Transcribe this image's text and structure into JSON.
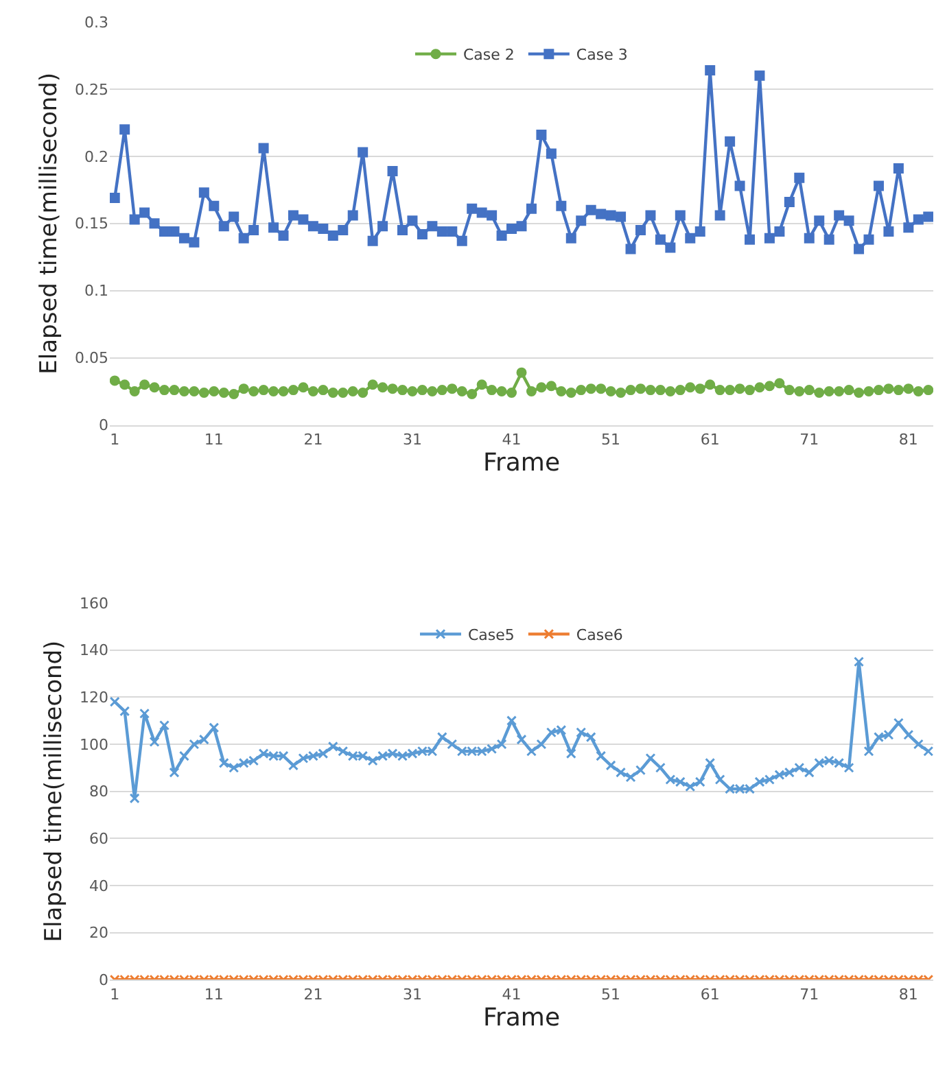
{
  "chart_data": [
    {
      "type": "line",
      "xlabel": "Frame",
      "ylabel": "Elapsed time(millisecond)",
      "x": [
        1,
        2,
        3,
        4,
        5,
        6,
        7,
        8,
        9,
        10,
        11,
        12,
        13,
        14,
        15,
        16,
        17,
        18,
        19,
        20,
        21,
        22,
        23,
        24,
        25,
        26,
        27,
        28,
        29,
        30,
        31,
        32,
        33,
        34,
        35,
        36,
        37,
        38,
        39,
        40,
        41,
        42,
        43,
        44,
        45,
        46,
        47,
        48,
        49,
        50,
        51,
        52,
        53,
        54,
        55,
        56,
        57,
        58,
        59,
        60,
        61,
        62,
        63,
        64,
        65,
        66,
        67,
        68,
        69,
        70,
        71,
        72,
        73,
        74,
        75,
        76,
        77,
        78,
        79,
        80,
        81,
        82,
        83
      ],
      "xlim": [
        0.5,
        83.5
      ],
      "xticks": [
        1,
        11,
        21,
        31,
        41,
        51,
        61,
        71,
        81
      ],
      "ylim": [
        0,
        0.3
      ],
      "yticks": [
        0,
        0.05,
        0.1,
        0.15,
        0.2,
        0.25,
        0.3
      ],
      "grid": "y",
      "legend": "top",
      "series": [
        {
          "name": "Case 2",
          "color": "#70ad47",
          "marker": "circle",
          "values": [
            0.033,
            0.03,
            0.025,
            0.03,
            0.028,
            0.026,
            0.026,
            0.025,
            0.025,
            0.024,
            0.025,
            0.024,
            0.023,
            0.027,
            0.025,
            0.026,
            0.025,
            0.025,
            0.026,
            0.028,
            0.025,
            0.026,
            0.024,
            0.024,
            0.025,
            0.024,
            0.03,
            0.028,
            0.027,
            0.026,
            0.025,
            0.026,
            0.025,
            0.026,
            0.027,
            0.025,
            0.023,
            0.03,
            0.026,
            0.025,
            0.024,
            0.039,
            0.025,
            0.028,
            0.029,
            0.025,
            0.024,
            0.026,
            0.027,
            0.027,
            0.025,
            0.024,
            0.026,
            0.027,
            0.026,
            0.026,
            0.025,
            0.026,
            0.028,
            0.027,
            0.03,
            0.026,
            0.026,
            0.027,
            0.026,
            0.028,
            0.029,
            0.031,
            0.026,
            0.025,
            0.026,
            0.024,
            0.025,
            0.025,
            0.026,
            0.024,
            0.025,
            0.026,
            0.027,
            0.026,
            0.027,
            0.025,
            0.026
          ]
        },
        {
          "name": "Case 3",
          "color": "#4472c4",
          "marker": "square",
          "values": [
            0.169,
            0.22,
            0.153,
            0.158,
            0.15,
            0.144,
            0.144,
            0.139,
            0.136,
            0.173,
            0.163,
            0.148,
            0.155,
            0.139,
            0.145,
            0.206,
            0.147,
            0.141,
            0.156,
            0.153,
            0.148,
            0.146,
            0.141,
            0.145,
            0.156,
            0.203,
            0.137,
            0.148,
            0.189,
            0.145,
            0.152,
            0.142,
            0.148,
            0.144,
            0.144,
            0.137,
            0.161,
            0.158,
            0.156,
            0.141,
            0.146,
            0.148,
            0.161,
            0.216,
            0.202,
            0.163,
            0.139,
            0.152,
            0.16,
            0.157,
            0.156,
            0.155,
            0.131,
            0.145,
            0.156,
            0.138,
            0.132,
            0.156,
            0.139,
            0.144,
            0.264,
            0.156,
            0.211,
            0.178,
            0.138,
            0.26,
            0.139,
            0.144,
            0.166,
            0.184,
            0.139,
            0.152,
            0.138,
            0.156,
            0.152,
            0.131,
            0.138,
            0.178,
            0.144,
            0.191,
            0.147,
            0.153,
            0.155
          ]
        }
      ]
    },
    {
      "type": "line",
      "xlabel": "Frame",
      "ylabel": "Elapsed time(millisecond)",
      "x": [
        1,
        2,
        3,
        4,
        5,
        6,
        7,
        8,
        9,
        10,
        11,
        12,
        13,
        14,
        15,
        16,
        17,
        18,
        19,
        20,
        21,
        22,
        23,
        24,
        25,
        26,
        27,
        28,
        29,
        30,
        31,
        32,
        33,
        34,
        35,
        36,
        37,
        38,
        39,
        40,
        41,
        42,
        43,
        44,
        45,
        46,
        47,
        48,
        49,
        50,
        51,
        52,
        53,
        54,
        55,
        56,
        57,
        58,
        59,
        60,
        61,
        62,
        63,
        64,
        65,
        66,
        67,
        68,
        69,
        70,
        71,
        72,
        73,
        74,
        75,
        76,
        77,
        78,
        79,
        80,
        81,
        82,
        83
      ],
      "xlim": [
        0.5,
        83.5
      ],
      "xticks": [
        1,
        11,
        21,
        31,
        41,
        51,
        61,
        71,
        81
      ],
      "ylim": [
        0,
        160
      ],
      "yticks": [
        0,
        20,
        40,
        60,
        80,
        100,
        120,
        140,
        160
      ],
      "grid": "y",
      "legend": "top",
      "series": [
        {
          "name": "Case5",
          "color": "#5b9bd5",
          "marker": "cross",
          "values": [
            118,
            114,
            77,
            113,
            101,
            108,
            88,
            95,
            100,
            102,
            107,
            92,
            90,
            92,
            93,
            96,
            95,
            95,
            91,
            94,
            95,
            96,
            99,
            97,
            95,
            95,
            93,
            95,
            96,
            95,
            96,
            97,
            97,
            103,
            100,
            97,
            97,
            97,
            98,
            100,
            110,
            102,
            97,
            100,
            105,
            106,
            96,
            105,
            103,
            95,
            91,
            88,
            86,
            89,
            94,
            90,
            85,
            84,
            82,
            84,
            92,
            85,
            81,
            81,
            81,
            84,
            85,
            87,
            88,
            90,
            88,
            92,
            93,
            92,
            90,
            135,
            97,
            103,
            104,
            109,
            104,
            100,
            97
          ]
        },
        {
          "name": "Case6",
          "color": "#ed7d31",
          "marker": "cross",
          "values": [
            0,
            0,
            0,
            0,
            0,
            0,
            0,
            0,
            0,
            0,
            0,
            0,
            0,
            0,
            0,
            0,
            0,
            0,
            0,
            0,
            0,
            0,
            0,
            0,
            0,
            0,
            0,
            0,
            0,
            0,
            0,
            0,
            0,
            0,
            0,
            0,
            0,
            0,
            0,
            0,
            0,
            0,
            0,
            0,
            0,
            0,
            0,
            0,
            0,
            0,
            0,
            0,
            0,
            0,
            0,
            0,
            0,
            0,
            0,
            0,
            0,
            0,
            0,
            0,
            0,
            0,
            0,
            0,
            0,
            0,
            0,
            0,
            0,
            0,
            0,
            0,
            0,
            0,
            0,
            0,
            0,
            0,
            0
          ]
        }
      ]
    }
  ]
}
